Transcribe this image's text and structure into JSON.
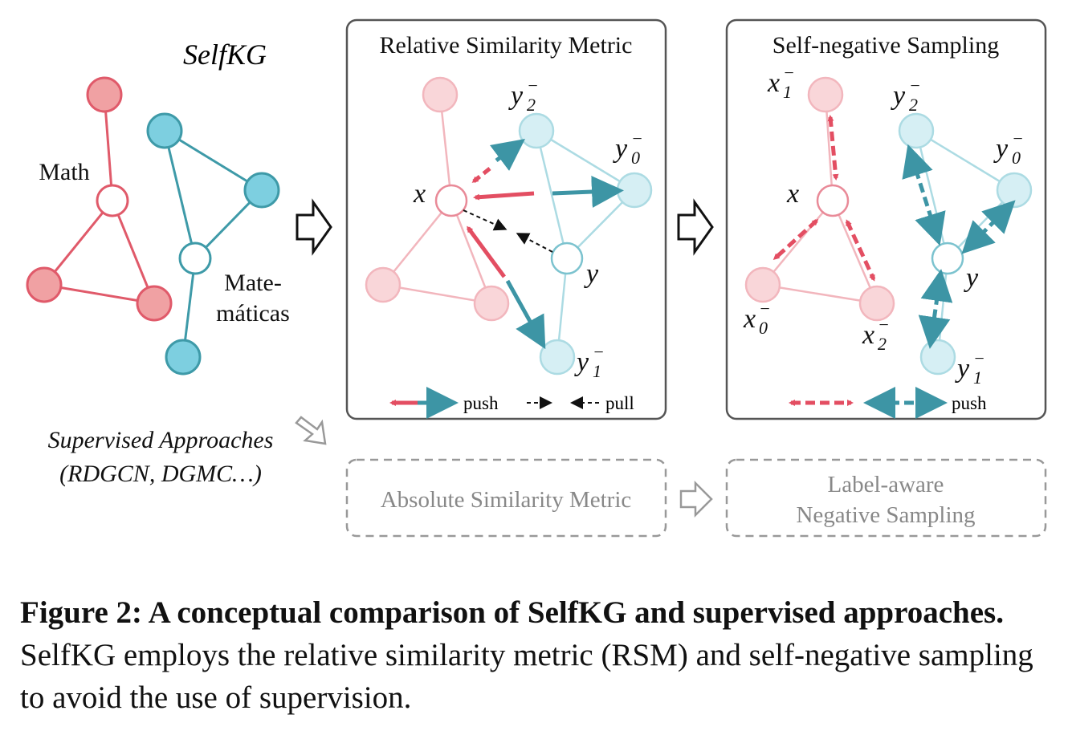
{
  "left": {
    "title": "SelfKG",
    "math": "Math",
    "mate": [
      "Mate-",
      "máticas"
    ],
    "supervised": [
      "Supervised Approaches",
      "(RDGCN, DGMC…)"
    ]
  },
  "panel1": {
    "title": "Relative Similarity Metric",
    "labels": {
      "x": "x",
      "y": "y",
      "y2": {
        "base": "y",
        "sub": "2",
        "sup": "−"
      },
      "y0": {
        "base": "y",
        "sub": "0",
        "sup": "−"
      },
      "y1": {
        "base": "y",
        "sub": "1",
        "sup": "−"
      }
    },
    "legend": {
      "push": "push",
      "pull": "pull"
    }
  },
  "panel2": {
    "title": "Self-negative Sampling",
    "labels": {
      "x": "x",
      "y": "y",
      "x1": {
        "base": "x",
        "sub": "1",
        "sup": "−"
      },
      "x0": {
        "base": "x",
        "sub": "0",
        "sup": "−"
      },
      "x2": {
        "base": "x",
        "sub": "2",
        "sup": "−"
      },
      "y2": {
        "base": "y",
        "sub": "2",
        "sup": "−"
      },
      "y0": {
        "base": "y",
        "sub": "0",
        "sup": "−"
      },
      "y1": {
        "base": "y",
        "sub": "1",
        "sup": "−"
      }
    },
    "legend": {
      "push": "push"
    }
  },
  "supervised_boxes": {
    "absolute": "Absolute Similarity Metric",
    "label_aware": [
      "Label-aware",
      "Negative Sampling"
    ]
  },
  "caption": {
    "label": "Figure 2: A conceptual comparison of SelfKG and supervised approaches.",
    "text": "SelfKG employs the relative similarity metric (RSM) and self-negative sampling to avoid the use of supervision."
  }
}
